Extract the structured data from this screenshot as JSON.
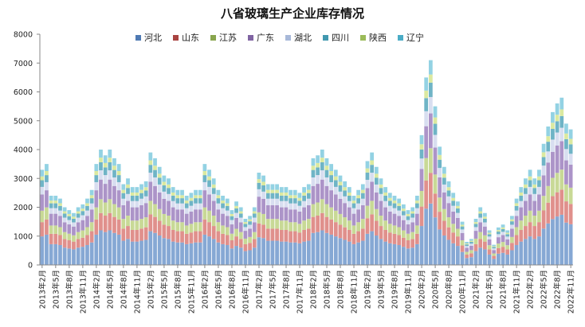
{
  "chart_data": {
    "type": "bar",
    "stacked": true,
    "title": "八省玻璃生产企业库存情况",
    "xlabel": "",
    "ylabel": "",
    "ylim": [
      0,
      8000
    ],
    "y_ticks": [
      0,
      1000,
      2000,
      3000,
      4000,
      5000,
      6000,
      7000,
      8000
    ],
    "grid": false,
    "legend_position": "top",
    "x_tick_labels": [
      "2013年2月",
      "2013年5月",
      "2013年8月",
      "2013年11月",
      "2014年2月",
      "2014年5月",
      "2014年8月",
      "2014年11月",
      "2015年2月",
      "2015年5月",
      "2015年8月",
      "2015年11月",
      "2016年2月",
      "2016年5月",
      "2016年8月",
      "2016年11月",
      "2017年2月",
      "2017年5月",
      "2017年8月",
      "2017年11月",
      "2018年2月",
      "2018年5月",
      "2018年8月",
      "2018年11月",
      "2019年2月",
      "2019年5月",
      "2019年8月",
      "2019年11月",
      "2020年2月",
      "2020年5月",
      "2020年8月",
      "2020年11月",
      "2021年2月",
      "2021年5月",
      "2021年8月",
      "2021年11月",
      "2022年2月",
      "2022年5月",
      "2022年8月",
      "2022年11月"
    ],
    "series": [
      {
        "name": "河北",
        "color": "#4f7ab3",
        "fill": "#86a8d4",
        "values": [
          990,
          1050,
          720,
          720,
          690,
          600,
          570,
          540,
          600,
          630,
          690,
          780,
          1050,
          1200,
          1140,
          1200,
          1110,
          1050,
          840,
          900,
          810,
          810,
          840,
          870,
          1170,
          1110,
          1020,
          930,
          900,
          810,
          780,
          780,
          720,
          750,
          780,
          780,
          1050,
          990,
          900,
          780,
          720,
          690,
          570,
          660,
          600,
          480,
          510,
          600,
          960,
          930,
          840,
          840,
          840,
          810,
          810,
          780,
          780,
          750,
          810,
          840,
          1110,
          1140,
          1200,
          1110,
          1050,
          990,
          930,
          870,
          810,
          720,
          780,
          840,
          1080,
          1170,
          1020,
          900,
          810,
          750,
          720,
          690,
          630,
          570,
          600,
          720,
          1350,
          1950,
          2130,
          1650,
          1230,
          1020,
          870,
          750,
          660,
          450,
          240,
          270,
          480,
          600,
          540,
          360,
          210,
          390,
          420,
          360,
          510,
          690,
          810,
          900,
          990,
          900,
          990,
          1260,
          1440,
          1590,
          1680,
          1740,
          1470,
          1410
        ]
      },
      {
        "name": "山东",
        "color": "#a94441",
        "fill": "#e0908c",
        "values": [
          495,
          525,
          360,
          360,
          345,
          300,
          285,
          270,
          300,
          315,
          345,
          390,
          525,
          600,
          570,
          600,
          555,
          525,
          420,
          450,
          405,
          405,
          420,
          435,
          585,
          555,
          510,
          465,
          450,
          405,
          390,
          390,
          360,
          375,
          390,
          390,
          525,
          495,
          450,
          390,
          360,
          345,
          285,
          330,
          300,
          240,
          255,
          300,
          480,
          465,
          420,
          420,
          420,
          405,
          405,
          390,
          390,
          375,
          405,
          420,
          555,
          570,
          600,
          555,
          525,
          495,
          465,
          435,
          405,
          360,
          390,
          420,
          540,
          585,
          510,
          450,
          405,
          375,
          360,
          345,
          315,
          285,
          300,
          360,
          675,
          975,
          1065,
          825,
          615,
          510,
          435,
          375,
          330,
          225,
          120,
          135,
          240,
          300,
          270,
          180,
          105,
          195,
          210,
          180,
          255,
          345,
          405,
          450,
          495,
          450,
          495,
          630,
          720,
          795,
          840,
          870,
          735,
          705
        ]
      },
      {
        "name": "江苏",
        "color": "#89a54e",
        "fill": "#c8d996",
        "values": [
          396,
          420,
          288,
          288,
          276,
          240,
          228,
          216,
          240,
          252,
          276,
          312,
          420,
          480,
          456,
          480,
          444,
          420,
          336,
          360,
          324,
          324,
          336,
          348,
          468,
          444,
          408,
          372,
          360,
          324,
          312,
          312,
          288,
          300,
          312,
          312,
          420,
          396,
          360,
          312,
          288,
          276,
          228,
          264,
          240,
          192,
          204,
          240,
          384,
          372,
          336,
          336,
          336,
          324,
          324,
          312,
          312,
          300,
          324,
          336,
          444,
          456,
          480,
          444,
          420,
          396,
          372,
          348,
          324,
          288,
          312,
          336,
          432,
          468,
          408,
          360,
          324,
          300,
          288,
          276,
          252,
          228,
          240,
          288,
          540,
          780,
          852,
          660,
          492,
          408,
          348,
          300,
          264,
          180,
          96,
          108,
          192,
          240,
          216,
          144,
          84,
          156,
          168,
          144,
          204,
          276,
          324,
          360,
          396,
          360,
          396,
          504,
          576,
          636,
          672,
          696,
          588,
          564
        ]
      },
      {
        "name": "广东",
        "color": "#8064a2",
        "fill": "#ac94c8",
        "values": [
          561,
          595,
          408,
          408,
          391,
          340,
          323,
          306,
          340,
          357,
          391,
          442,
          595,
          680,
          646,
          680,
          629,
          595,
          476,
          510,
          459,
          459,
          476,
          493,
          663,
          629,
          578,
          527,
          510,
          459,
          442,
          442,
          408,
          425,
          442,
          442,
          595,
          561,
          510,
          442,
          408,
          391,
          323,
          374,
          340,
          272,
          289,
          340,
          544,
          527,
          476,
          476,
          476,
          459,
          459,
          442,
          442,
          425,
          459,
          476,
          629,
          646,
          680,
          629,
          595,
          561,
          527,
          493,
          459,
          408,
          442,
          476,
          612,
          663,
          578,
          510,
          459,
          425,
          408,
          391,
          357,
          323,
          340,
          408,
          765,
          1105,
          1207,
          935,
          697,
          578,
          493,
          425,
          374,
          255,
          136,
          153,
          272,
          340,
          306,
          204,
          119,
          221,
          238,
          204,
          289,
          391,
          459,
          510,
          561,
          510,
          561,
          714,
          816,
          901,
          952,
          986,
          833,
          799
        ]
      },
      {
        "name": "湖北",
        "color": "#a8b9d9",
        "fill": "#d8def0",
        "values": [
          264,
          280,
          192,
          192,
          184,
          160,
          152,
          144,
          160,
          168,
          184,
          208,
          280,
          320,
          304,
          320,
          296,
          280,
          224,
          240,
          216,
          216,
          224,
          232,
          312,
          296,
          272,
          248,
          240,
          216,
          208,
          208,
          192,
          200,
          208,
          208,
          280,
          264,
          240,
          208,
          192,
          184,
          152,
          176,
          160,
          128,
          136,
          160,
          256,
          248,
          224,
          224,
          224,
          216,
          216,
          208,
          208,
          200,
          216,
          224,
          296,
          304,
          320,
          296,
          280,
          264,
          248,
          232,
          216,
          192,
          208,
          224,
          288,
          312,
          272,
          240,
          216,
          200,
          192,
          184,
          168,
          152,
          160,
          192,
          360,
          520,
          568,
          440,
          328,
          272,
          232,
          200,
          176,
          120,
          64,
          72,
          128,
          160,
          144,
          96,
          56,
          104,
          112,
          96,
          136,
          184,
          216,
          240,
          264,
          240,
          264,
          336,
          384,
          424,
          448,
          464,
          392,
          376
        ]
      },
      {
        "name": "四川",
        "color": "#4198af",
        "fill": "#6fb4c6",
        "values": [
          231,
          245,
          168,
          168,
          161,
          140,
          133,
          126,
          140,
          147,
          161,
          182,
          245,
          280,
          266,
          280,
          259,
          245,
          196,
          210,
          189,
          189,
          196,
          203,
          273,
          259,
          238,
          217,
          210,
          189,
          182,
          182,
          168,
          175,
          182,
          182,
          245,
          231,
          210,
          182,
          168,
          161,
          133,
          154,
          140,
          112,
          119,
          140,
          224,
          217,
          196,
          196,
          196,
          189,
          189,
          182,
          182,
          175,
          189,
          196,
          259,
          266,
          280,
          259,
          245,
          231,
          217,
          203,
          189,
          168,
          182,
          196,
          252,
          273,
          238,
          210,
          189,
          175,
          168,
          161,
          147,
          133,
          140,
          168,
          315,
          455,
          497,
          385,
          287,
          238,
          203,
          175,
          154,
          105,
          56,
          63,
          112,
          140,
          126,
          84,
          49,
          91,
          98,
          84,
          119,
          161,
          189,
          210,
          231,
          210,
          231,
          294,
          336,
          371,
          392,
          406,
          343,
          329
        ]
      },
      {
        "name": "陕西",
        "color": "#9bbb59",
        "fill": "#dbe9a0",
        "values": [
          132,
          140,
          96,
          96,
          92,
          80,
          76,
          72,
          80,
          84,
          92,
          104,
          140,
          160,
          152,
          160,
          148,
          140,
          112,
          120,
          108,
          108,
          112,
          116,
          156,
          148,
          136,
          124,
          120,
          108,
          104,
          104,
          96,
          100,
          104,
          104,
          140,
          132,
          120,
          104,
          96,
          92,
          76,
          88,
          80,
          64,
          68,
          80,
          128,
          124,
          112,
          112,
          112,
          108,
          108,
          104,
          104,
          100,
          108,
          112,
          148,
          152,
          160,
          148,
          140,
          132,
          124,
          116,
          108,
          96,
          104,
          112,
          144,
          156,
          136,
          120,
          108,
          100,
          96,
          92,
          84,
          76,
          80,
          96,
          180,
          260,
          284,
          220,
          164,
          136,
          116,
          100,
          88,
          60,
          32,
          36,
          64,
          80,
          72,
          48,
          28,
          52,
          56,
          48,
          68,
          92,
          108,
          120,
          132,
          120,
          132,
          168,
          192,
          212,
          224,
          232,
          196,
          188
        ]
      },
      {
        "name": "辽宁",
        "color": "#4bacc6",
        "fill": "#93d2e3",
        "values": [
          231,
          245,
          168,
          168,
          161,
          140,
          133,
          126,
          140,
          147,
          161,
          182,
          245,
          280,
          266,
          280,
          259,
          245,
          196,
          210,
          189,
          189,
          196,
          203,
          273,
          259,
          238,
          217,
          210,
          189,
          182,
          182,
          168,
          175,
          182,
          182,
          245,
          231,
          210,
          182,
          168,
          161,
          133,
          154,
          140,
          112,
          119,
          140,
          224,
          217,
          196,
          196,
          196,
          189,
          189,
          182,
          182,
          175,
          189,
          196,
          259,
          266,
          280,
          259,
          245,
          231,
          217,
          203,
          189,
          168,
          182,
          196,
          252,
          273,
          238,
          210,
          189,
          175,
          168,
          161,
          147,
          133,
          140,
          168,
          315,
          455,
          497,
          385,
          287,
          238,
          203,
          175,
          154,
          105,
          56,
          63,
          112,
          140,
          126,
          84,
          49,
          91,
          98,
          84,
          119,
          161,
          189,
          210,
          231,
          210,
          231,
          294,
          336,
          371,
          392,
          406,
          343,
          329
        ]
      }
    ]
  }
}
